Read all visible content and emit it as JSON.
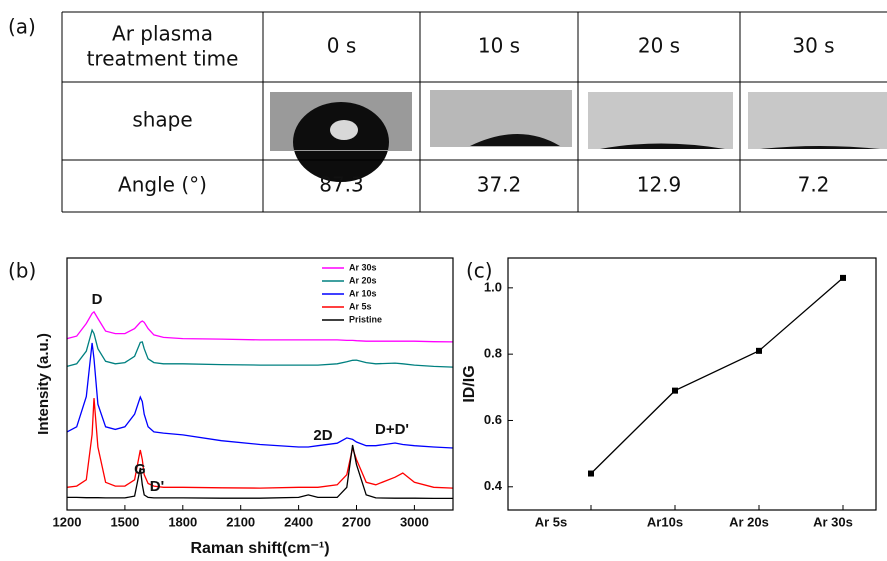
{
  "panel_labels": [
    "(a)",
    "(b)",
    "(c)"
  ],
  "table": {
    "rows": [
      [
        [
          "Ar plasma",
          "treatment time"
        ],
        "0 s",
        "10 s",
        "20 s",
        "30 s"
      ],
      [
        "shape"
      ],
      [
        "Angle (°)",
        87.3,
        37.2,
        12.9,
        7.2
      ]
    ]
  },
  "chart_data": [
    {
      "type": "line",
      "xlabel": "Raman shift(cm⁻¹)",
      "ylabel": "Intensity (a.u.)",
      "xlim": [
        1200,
        3200
      ],
      "xticks": [
        1200,
        1500,
        1800,
        2100,
        2400,
        2700,
        3000
      ],
      "ylim": [
        0,
        100
      ],
      "legend": "top-right",
      "annotations": [
        "D",
        "G",
        "D'",
        "2D",
        "D+D'"
      ],
      "x": [
        1200,
        1250,
        1300,
        1330,
        1340,
        1360,
        1400,
        1450,
        1500,
        1550,
        1580,
        1590,
        1600,
        1620,
        1650,
        1700,
        1800,
        2000,
        2200,
        2400,
        2450,
        2500,
        2600,
        2650,
        2680,
        2700,
        2750,
        2800,
        2900,
        2940,
        3000,
        3100,
        3200
      ],
      "series": [
        {
          "name": "Ar 30s",
          "color": "#ff00ff",
          "values": [
            68,
            69,
            74,
            78,
            78.6,
            76,
            71,
            70,
            70,
            72,
            74.5,
            75,
            74.5,
            72,
            69.5,
            68.5,
            68,
            67.8,
            67.5,
            67.5,
            67.5,
            67.5,
            67.5,
            67.3,
            67.3,
            67.2,
            67,
            67,
            67,
            67,
            67,
            66.8,
            66.7
          ]
        },
        {
          "name": "Ar 20s",
          "color": "#008080",
          "values": [
            57,
            58,
            63,
            71.4,
            70,
            64,
            59,
            58,
            58.5,
            61,
            66.5,
            66.7,
            64,
            60,
            58.5,
            58,
            58,
            57.7,
            57.5,
            57.5,
            57.5,
            57.5,
            58,
            58.8,
            59.4,
            59.5,
            58.5,
            58,
            58.3,
            58,
            57.5,
            57,
            56.7
          ]
        },
        {
          "name": "Ar 10s",
          "color": "#0000ff",
          "values": [
            31,
            33,
            45,
            66.3,
            60,
            42,
            33,
            32,
            33,
            38,
            44.8,
            43,
            38,
            33,
            31,
            30.5,
            29.8,
            27.5,
            26,
            25,
            25,
            25.5,
            26.5,
            28.6,
            28,
            27,
            25.5,
            25.5,
            26.6,
            26,
            25.5,
            25,
            24.6
          ]
        },
        {
          "name": "Ar 5s",
          "color": "#ff0000",
          "values": [
            9,
            9.5,
            12,
            30,
            44.4,
            25,
            11,
            9.5,
            9.5,
            12,
            23.8,
            20,
            14,
            10.5,
            9.5,
            9,
            9,
            8.8,
            8.7,
            9,
            9,
            9,
            10,
            14,
            24.6,
            20,
            11,
            10,
            13,
            14.7,
            11,
            9,
            8.7
          ]
        },
        {
          "name": "Pristine",
          "color": "#000000",
          "values": [
            5,
            5,
            4.9,
            4.9,
            4.9,
            4.9,
            4.8,
            4.8,
            4.8,
            5.5,
            16.7,
            10,
            6,
            5,
            4.8,
            4.8,
            4.8,
            4.7,
            4.7,
            5,
            6,
            5,
            5,
            9,
            25.8,
            18,
            6,
            4.8,
            4.7,
            4.7,
            4.7,
            4.6,
            4.6
          ]
        }
      ]
    },
    {
      "type": "line",
      "ylabel": "ID/IG",
      "categories": [
        "Ar 5s",
        "Ar10s",
        "Ar 20s",
        "Ar 30s"
      ],
      "values": [
        0.44,
        0.69,
        0.81,
        1.03
      ],
      "color": "#000000",
      "ylim": [
        0.33,
        1.09
      ],
      "yticks": [
        0.4,
        0.6,
        0.8,
        {
          "value": 1,
          "label": "1.0"
        }
      ]
    }
  ]
}
